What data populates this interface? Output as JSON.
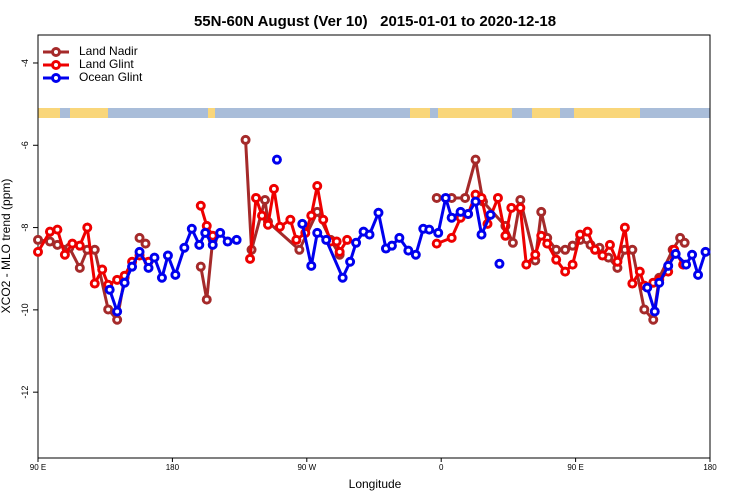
{
  "chart_data": {
    "type": "line",
    "title": "55N-60N August (Ver 10)   2015-01-01 to 2020-12-18",
    "xlabel": "Longitude",
    "ylabel": "XCO2 - MLO trend (ppm)",
    "xlim": [
      90,
      540
    ],
    "ylim": [
      -13.6,
      -3.32
    ],
    "xticks": [
      {
        "value": 90,
        "label": "90 E"
      },
      {
        "value": 180,
        "label": "180"
      },
      {
        "value": 270,
        "label": "90 W"
      },
      {
        "value": 360,
        "label": "0"
      },
      {
        "value": 450,
        "label": "90 E"
      },
      {
        "value": 540,
        "label": "180"
      }
    ],
    "yticks": [
      -4,
      -6,
      -8,
      -10,
      -12
    ],
    "legend": "top-left",
    "series": [
      {
        "name": "Land Nadir",
        "color": "#a52a2a",
        "x": [
          90,
          98,
          103,
          111,
          118,
          123,
          128,
          137,
          143,
          148,
          153,
          158,
          162,
          180,
          199,
          203,
          207,
          220,
          229,
          233,
          242,
          244,
          265,
          277,
          286,
          292,
          330,
          357,
          367,
          376,
          383,
          388,
          403,
          408,
          413,
          423,
          427,
          431,
          437,
          443,
          448,
          453,
          460,
          466,
          472,
          478,
          483,
          488,
          496,
          502,
          506,
          515,
          520,
          523
        ],
        "values": [
          -8.3,
          -8.34,
          -8.42,
          -8.49,
          -8.98,
          -8.54,
          -8.54,
          -9.99,
          -10.24,
          -9.22,
          null,
          -8.25,
          -8.39,
          null,
          -8.95,
          -9.75,
          -8.3,
          null,
          -5.87,
          -8.54,
          -7.33,
          -7.86,
          -8.54,
          -7.62,
          -8.3,
          -8.66,
          null,
          -7.28,
          -7.28,
          -7.28,
          -6.35,
          -7.37,
          -7.96,
          -8.37,
          -7.33,
          -8.8,
          -7.62,
          -8.25,
          -8.54,
          -8.54,
          -8.44,
          -8.3,
          -8.42,
          -8.49,
          -8.73,
          -8.98,
          -8.54,
          -8.54,
          -9.99,
          -10.24,
          -9.22,
          -8.54,
          -8.25,
          -8.37
        ]
      },
      {
        "name": "Land Glint",
        "color": "#ee0000",
        "x": [
          90,
          98,
          103,
          108,
          113,
          118,
          123,
          128,
          133,
          137,
          143,
          148,
          153,
          158,
          164,
          180,
          199,
          203,
          207,
          220,
          232,
          236,
          240,
          244,
          248,
          252,
          259,
          263,
          269,
          273,
          277,
          281,
          286,
          290,
          292,
          297,
          330,
          357,
          367,
          373,
          378,
          383,
          387,
          391,
          398,
          403,
          407,
          413,
          417,
          423,
          427,
          431,
          437,
          443,
          448,
          453,
          458,
          463,
          468,
          473,
          478,
          483,
          488,
          493,
          496,
          502,
          506,
          512,
          516,
          522
        ],
        "values": [
          -8.59,
          -8.1,
          -8.05,
          -8.66,
          -8.39,
          -8.44,
          -8.0,
          -9.36,
          -9.02,
          -9.39,
          -9.27,
          -9.17,
          -8.83,
          -8.68,
          -8.83,
          null,
          -7.47,
          -7.96,
          -8.2,
          null,
          -8.76,
          -7.28,
          -7.71,
          -7.93,
          -7.06,
          -7.98,
          -7.81,
          -8.3,
          -8.13,
          -7.71,
          -6.99,
          -7.81,
          -8.34,
          -8.34,
          -8.59,
          -8.3,
          null,
          -8.39,
          -8.25,
          -7.76,
          -7.67,
          -7.2,
          -7.28,
          -7.91,
          -7.28,
          -8.2,
          -7.52,
          -7.52,
          -8.9,
          -8.66,
          -8.2,
          -8.39,
          -8.78,
          -9.07,
          -8.9,
          -8.17,
          -8.1,
          -8.54,
          -8.68,
          -8.42,
          -8.83,
          -8.0,
          -9.36,
          -9.07,
          -9.41,
          -9.34,
          -9.27,
          -9.07,
          -8.54,
          -8.9
        ]
      },
      {
        "name": "Ocean Glint",
        "color": "#0000ee",
        "x": [
          138,
          143,
          148,
          153,
          158,
          164,
          168,
          173,
          177,
          182,
          188,
          193,
          198,
          202,
          207,
          212,
          217,
          223,
          236,
          250,
          260,
          267,
          273,
          277,
          283,
          294,
          299,
          303,
          308,
          312,
          318,
          323,
          327,
          332,
          338,
          343,
          348,
          352,
          358,
          363,
          367,
          373,
          378,
          383,
          387,
          393,
          396,
          399,
          450,
          498,
          503,
          506,
          512,
          517,
          524,
          528,
          532,
          537
        ],
        "values": [
          -9.51,
          -10.04,
          -9.34,
          -8.95,
          -8.59,
          -8.98,
          -8.73,
          -9.22,
          -8.68,
          -9.15,
          -8.49,
          -8.03,
          -8.42,
          -8.13,
          -8.42,
          -8.13,
          -8.34,
          -8.3,
          null,
          -6.35,
          null,
          -7.91,
          -8.93,
          -8.13,
          -8.3,
          -9.22,
          -8.83,
          -8.37,
          -8.1,
          -8.17,
          -7.64,
          -8.51,
          -8.44,
          -8.25,
          -8.56,
          -8.66,
          -8.03,
          -8.05,
          -8.13,
          -7.28,
          -7.76,
          -7.62,
          -7.67,
          -7.37,
          -8.17,
          -7.69,
          null,
          -8.88,
          null,
          -9.46,
          -10.04,
          -9.34,
          -8.93,
          -8.64,
          -8.9,
          -8.66,
          -9.15,
          -8.59
        ]
      }
    ]
  }
}
